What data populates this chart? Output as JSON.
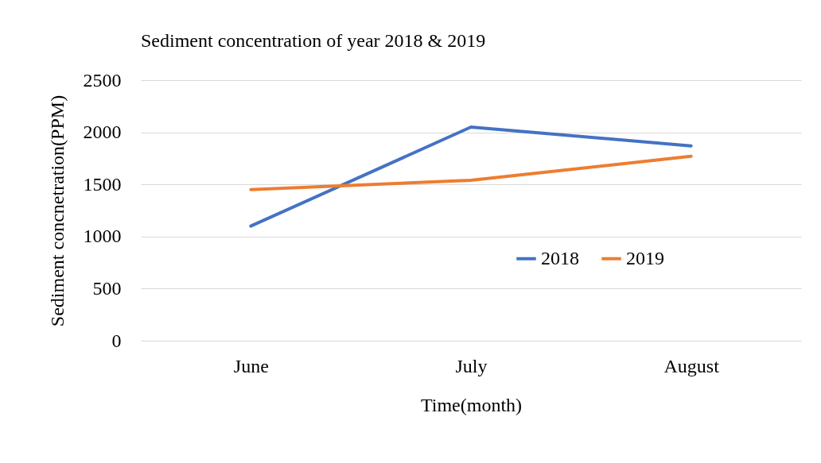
{
  "chart_data": {
    "type": "line",
    "title": "Sediment concentration of year 2018 & 2019",
    "xlabel": "Time(month)",
    "ylabel": "Sediment concnetration(PPM)",
    "categories": [
      "June",
      "July",
      "August"
    ],
    "series": [
      {
        "name": "2018",
        "color": "#4472c4",
        "values": [
          1100,
          2050,
          1870
        ]
      },
      {
        "name": "2019",
        "color": "#ed7d31",
        "values": [
          1450,
          1540,
          1770
        ]
      }
    ],
    "ylim": [
      0,
      2500
    ],
    "yticks": [
      0,
      500,
      1000,
      1500,
      2000,
      2500
    ],
    "grid": "y",
    "legend": "right",
    "marker": "none",
    "line_style": "solid"
  }
}
